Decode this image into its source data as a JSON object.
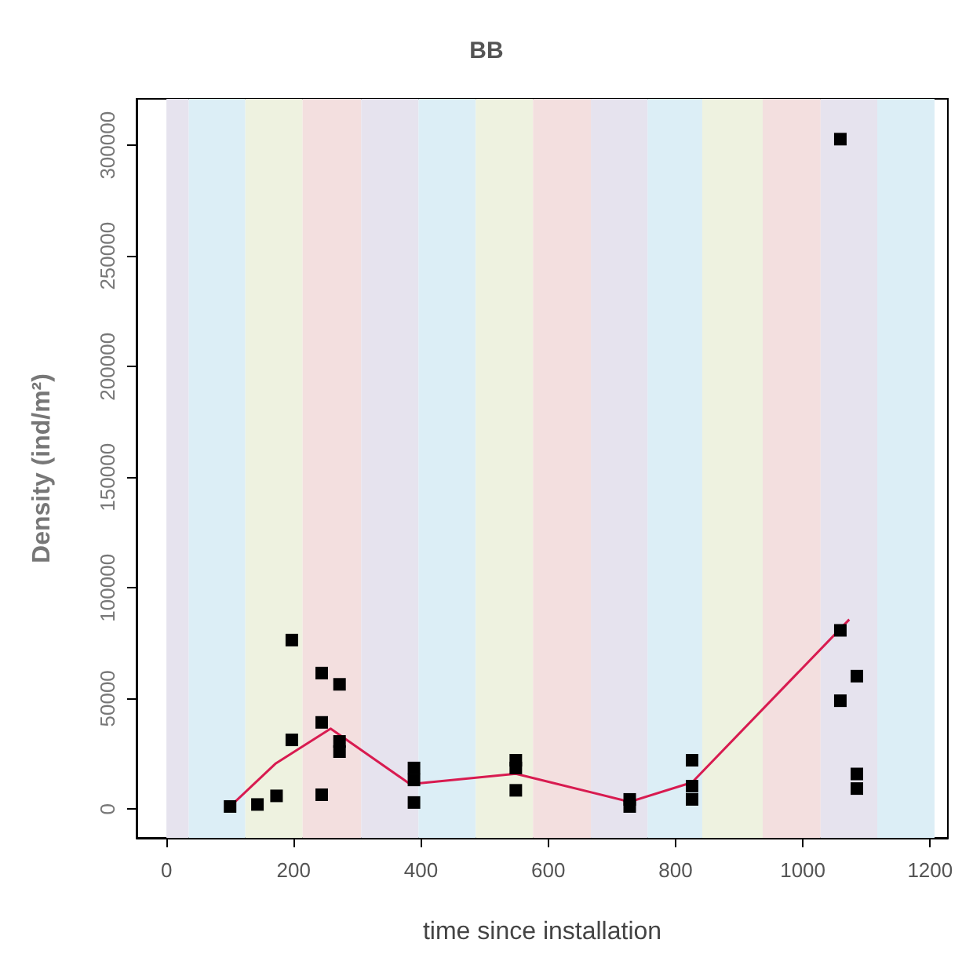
{
  "chart_data": {
    "type": "scatter",
    "title": "BB",
    "xlabel": "time since installation",
    "ylabel": "Density (ind/m²)",
    "xlim": [
      -47,
      1228
    ],
    "xticks": [
      0,
      200,
      400,
      600,
      800,
      1000,
      1200
    ],
    "ylim": [
      -13000,
      321000
    ],
    "yticks": [
      0,
      50000,
      100000,
      150000,
      200000,
      250000,
      300000
    ],
    "grid": false,
    "series": [
      {
        "color": "#000000",
        "marker": "square",
        "x": [
          100,
          143,
          173,
          197,
          197,
          244,
          244,
          244,
          272,
          272,
          272,
          389,
          389,
          389,
          549,
          549,
          549,
          728,
          728,
          826,
          826,
          826,
          1059,
          1059,
          1059,
          1085,
          1085,
          1085
        ],
        "values": [
          1200,
          2100,
          6000,
          76400,
          31300,
          61500,
          39200,
          6500,
          56400,
          30600,
          26000,
          18600,
          13200,
          3000,
          22100,
          18600,
          8500,
          4400,
          1200,
          22100,
          10400,
          4400,
          302800,
          80800,
          49000,
          60100,
          15900,
          9300
        ]
      },
      {
        "type": "line",
        "color": "#d81b50",
        "marker": "none",
        "x": [
          100,
          172,
          258,
          383,
          549,
          728,
          826,
          1073
        ],
        "values": [
          1200,
          20700,
          36400,
          11300,
          16000,
          3300,
          12100,
          85700
        ]
      }
    ],
    "bands": [
      {
        "axis": "x",
        "from": 0,
        "to": 35,
        "color": "#e6e3ee"
      },
      {
        "axis": "x",
        "from": 35,
        "to": 124,
        "color": "#dceef6"
      },
      {
        "axis": "x",
        "from": 124,
        "to": 214,
        "color": "#eef2e0"
      },
      {
        "axis": "x",
        "from": 214,
        "to": 306,
        "color": "#f3dfdf"
      },
      {
        "axis": "x",
        "from": 306,
        "to": 396,
        "color": "#e6e3ee"
      },
      {
        "axis": "x",
        "from": 396,
        "to": 486,
        "color": "#dceef6"
      },
      {
        "axis": "x",
        "from": 486,
        "to": 576,
        "color": "#eef2e0"
      },
      {
        "axis": "x",
        "from": 576,
        "to": 667,
        "color": "#f3dfdf"
      },
      {
        "axis": "x",
        "from": 667,
        "to": 756,
        "color": "#e6e3ee"
      },
      {
        "axis": "x",
        "from": 756,
        "to": 842,
        "color": "#dceef6"
      },
      {
        "axis": "x",
        "from": 842,
        "to": 937,
        "color": "#eef2e0"
      },
      {
        "axis": "x",
        "from": 937,
        "to": 1028,
        "color": "#f3dfdf"
      },
      {
        "axis": "x",
        "from": 1028,
        "to": 1117,
        "color": "#e6e3ee"
      },
      {
        "axis": "x",
        "from": 1117,
        "to": 1207,
        "color": "#dceef6"
      }
    ]
  }
}
